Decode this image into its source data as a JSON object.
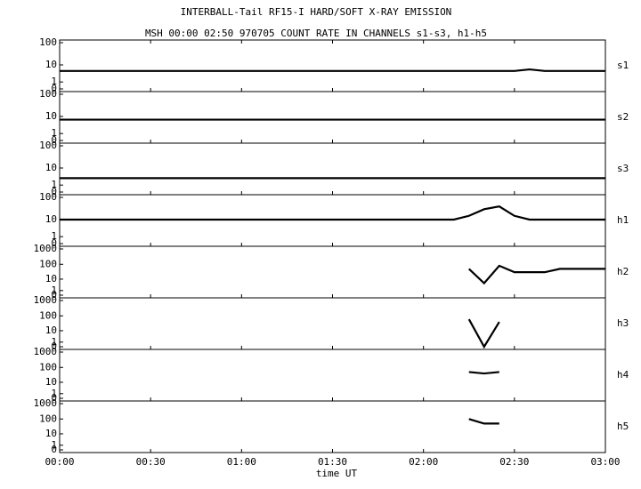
{
  "chart_data": {
    "type": "line",
    "title": "INTERBALL-Tail RF15-I HARD/SOFT X-RAY EMISSION",
    "subtitle": "MSH 00:00 02:50 970705  COUNT RATE IN CHANNELS s1-s3, h1-h5",
    "x_label": "time UT",
    "yscale": "log1p",
    "xlim": [
      0,
      180
    ],
    "xticks": [
      {
        "value": 0,
        "label": "00:00"
      },
      {
        "value": 30,
        "label": "00:30"
      },
      {
        "value": 60,
        "label": "01:00"
      },
      {
        "value": 90,
        "label": "01:30"
      },
      {
        "value": 120,
        "label": "02:00"
      },
      {
        "value": 150,
        "label": "02:30"
      },
      {
        "value": 180,
        "label": "03:00"
      }
    ],
    "x": [
      0,
      5,
      10,
      15,
      20,
      25,
      30,
      35,
      40,
      45,
      50,
      55,
      60,
      65,
      70,
      75,
      80,
      85,
      90,
      95,
      100,
      105,
      110,
      115,
      120,
      125,
      130,
      135,
      140,
      145,
      150,
      155,
      160,
      165,
      170,
      175,
      180
    ],
    "series": [
      {
        "name": "s1",
        "color": "#000000",
        "ylim": [
          0,
          100
        ],
        "yticks": [
          0,
          1,
          10,
          100
        ],
        "values": [
          5,
          5,
          5,
          5,
          5,
          5,
          5,
          5,
          5,
          5,
          5,
          5,
          5,
          5,
          5,
          5,
          5,
          5,
          5,
          5,
          5,
          5,
          5,
          5,
          5,
          5,
          5,
          5,
          5,
          5,
          5,
          6,
          5,
          5,
          5,
          5,
          5
        ]
      },
      {
        "name": "s2",
        "color": "#000000",
        "ylim": [
          0,
          100
        ],
        "yticks": [
          0,
          1,
          10,
          100
        ],
        "values": [
          7,
          7,
          7,
          7,
          7,
          7,
          7,
          7,
          7,
          7,
          7,
          7,
          7,
          7,
          7,
          7,
          7,
          7,
          7,
          7,
          7,
          7,
          7,
          7,
          7,
          7,
          7,
          7,
          7,
          7,
          7,
          7,
          7,
          7,
          7,
          7,
          7
        ]
      },
      {
        "name": "s3",
        "color": "#000000",
        "ylim": [
          0,
          100
        ],
        "yticks": [
          0,
          1,
          10,
          100
        ],
        "values": [
          3,
          3,
          3,
          3,
          3,
          3,
          3,
          3,
          3,
          3,
          3,
          3,
          3,
          3,
          3,
          3,
          3,
          3,
          3,
          3,
          3,
          3,
          3,
          3,
          3,
          3,
          3,
          3,
          3,
          3,
          3,
          3,
          3,
          3,
          3,
          3,
          3
        ]
      },
      {
        "name": "h1",
        "color": "#000000",
        "ylim": [
          0,
          100
        ],
        "yticks": [
          0,
          1,
          10,
          100
        ],
        "values": [
          10,
          10,
          10,
          10,
          10,
          10,
          10,
          10,
          10,
          10,
          10,
          10,
          10,
          10,
          10,
          10,
          10,
          10,
          10,
          10,
          10,
          10,
          10,
          10,
          10,
          10,
          10,
          15,
          30,
          40,
          15,
          10,
          10,
          10,
          10,
          10,
          10
        ]
      },
      {
        "name": "h2",
        "color": "#000000",
        "ylim": [
          0,
          1000
        ],
        "yticks": [
          0,
          1,
          10,
          100,
          1000
        ],
        "values": [
          null,
          null,
          null,
          null,
          null,
          null,
          null,
          null,
          null,
          null,
          null,
          null,
          null,
          null,
          null,
          null,
          null,
          null,
          null,
          null,
          null,
          null,
          null,
          null,
          null,
          null,
          null,
          50,
          5,
          80,
          30,
          30,
          30,
          50,
          50,
          50,
          50
        ]
      },
      {
        "name": "h3",
        "color": "#000000",
        "ylim": [
          0,
          1000
        ],
        "yticks": [
          0,
          1,
          10,
          100,
          1000
        ],
        "values": [
          null,
          null,
          null,
          null,
          null,
          null,
          null,
          null,
          null,
          null,
          null,
          null,
          null,
          null,
          null,
          null,
          null,
          null,
          null,
          null,
          null,
          null,
          null,
          null,
          null,
          null,
          null,
          60,
          0,
          40,
          null,
          null,
          null,
          null,
          null,
          null,
          null
        ]
      },
      {
        "name": "h4",
        "color": "#000000",
        "ylim": [
          0,
          1000
        ],
        "yticks": [
          0,
          1,
          10,
          100,
          1000
        ],
        "values": [
          null,
          null,
          null,
          null,
          null,
          null,
          null,
          null,
          null,
          null,
          null,
          null,
          null,
          null,
          null,
          null,
          null,
          null,
          null,
          null,
          null,
          null,
          null,
          null,
          null,
          null,
          null,
          50,
          40,
          50,
          null,
          null,
          null,
          null,
          null,
          null,
          null
        ]
      },
      {
        "name": "h5",
        "color": "#000000",
        "ylim": [
          0,
          1000
        ],
        "yticks": [
          0,
          1,
          10,
          100,
          1000
        ],
        "values": [
          null,
          null,
          null,
          null,
          null,
          null,
          null,
          null,
          null,
          null,
          null,
          null,
          null,
          null,
          null,
          null,
          null,
          null,
          null,
          null,
          null,
          null,
          null,
          null,
          null,
          null,
          null,
          100,
          50,
          50,
          null,
          null,
          null,
          null,
          null,
          null,
          null
        ]
      }
    ]
  }
}
